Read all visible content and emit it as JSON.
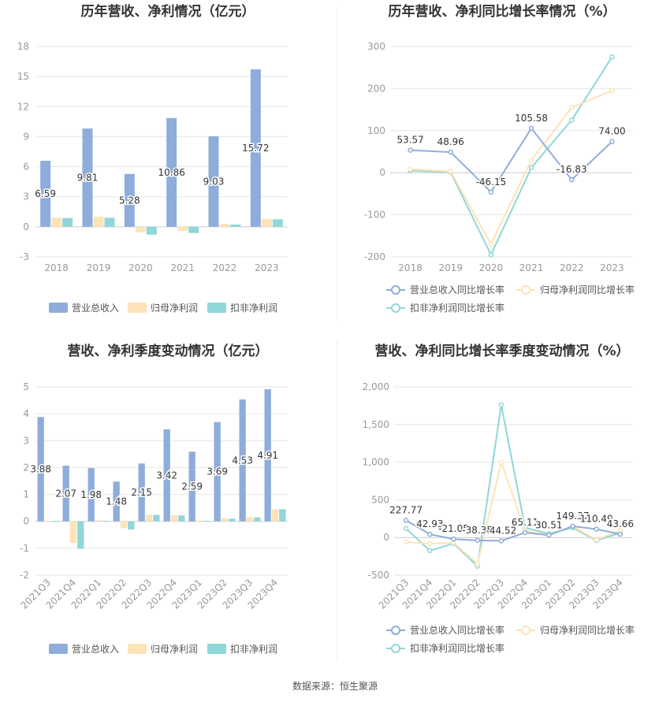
{
  "colors": {
    "revenue": "#8fadda",
    "net_profit": "#fde3b8",
    "deducted_profit": "#8fd7d8",
    "revenue_line": "#8fadda",
    "net_profit_line": "#fde3b8",
    "deducted_profit_line": "#8fd7d8",
    "grid": "#e6e6e6",
    "axis_text": "#999999",
    "title": "#333333"
  },
  "source": "数据来源：恒生聚源",
  "chart_data": [
    {
      "type": "bar",
      "title": "历年营收、净利情况（亿元）",
      "categories": [
        "2018",
        "2019",
        "2020",
        "2021",
        "2022",
        "2023"
      ],
      "ylim": [
        -3,
        18
      ],
      "yticks": [
        -3,
        0,
        3,
        6,
        9,
        12,
        15,
        18
      ],
      "series": [
        {
          "name": "营业总收入",
          "values": [
            6.59,
            9.81,
            5.28,
            10.86,
            9.03,
            15.72
          ],
          "labels": [
            "6.59",
            "9.81",
            "5.28",
            "10.86",
            "9.03",
            "15.72"
          ]
        },
        {
          "name": "归母净利润",
          "values": [
            0.92,
            1.0,
            -0.55,
            -0.4,
            0.28,
            0.78
          ]
        },
        {
          "name": "扣非净利润",
          "values": [
            0.88,
            0.9,
            -0.78,
            -0.62,
            0.22,
            0.75
          ]
        }
      ],
      "legend": "bottom"
    },
    {
      "type": "line",
      "title": "历年营收、净利同比增长率情况（%）",
      "categories": [
        "2018",
        "2019",
        "2020",
        "2021",
        "2022",
        "2023"
      ],
      "ylim": [
        -200,
        300
      ],
      "yticks": [
        -200,
        -100,
        0,
        100,
        200,
        300
      ],
      "series": [
        {
          "name": "营业总收入同比增长率",
          "values": [
            53.57,
            48.96,
            -46.15,
            105.58,
            -16.83,
            74.0
          ],
          "labels": [
            "53.57",
            "48.96",
            "-46.15",
            "105.58",
            "-16.83",
            "74.00"
          ]
        },
        {
          "name": "归母净利润同比增长率",
          "values": [
            8,
            3,
            -170,
            30,
            155,
            195
          ]
        },
        {
          "name": "扣非净利润同比增长率",
          "values": [
            5,
            1,
            -195,
            12,
            125,
            275
          ]
        }
      ],
      "legend": "bottom"
    },
    {
      "type": "bar",
      "title": "营收、净利季度变动情况（亿元）",
      "categories": [
        "2021Q3",
        "2021Q4",
        "2022Q1",
        "2022Q2",
        "2022Q3",
        "2022Q4",
        "2023Q1",
        "2023Q2",
        "2023Q3",
        "2023Q4"
      ],
      "ylim": [
        -2,
        5
      ],
      "yticks": [
        -2,
        -1,
        0,
        1,
        2,
        3,
        4,
        5
      ],
      "series": [
        {
          "name": "营业总收入",
          "values": [
            3.88,
            2.07,
            1.98,
            1.48,
            2.15,
            3.42,
            2.59,
            3.69,
            4.53,
            4.91
          ],
          "labels": [
            "3.88",
            "2.07",
            "1.98",
            "1.48",
            "2.15",
            "3.42",
            "2.59",
            "3.69",
            "4.53",
            "4.91"
          ]
        },
        {
          "name": "归母净利润",
          "values": [
            0.02,
            -0.8,
            0.04,
            -0.25,
            0.25,
            0.22,
            0.03,
            0.12,
            0.16,
            0.45
          ]
        },
        {
          "name": "扣非净利润",
          "values": [
            0.01,
            -1.02,
            0.02,
            -0.3,
            0.24,
            0.22,
            0.02,
            0.1,
            0.15,
            0.45
          ]
        }
      ],
      "legend": "bottom"
    },
    {
      "type": "line",
      "title": "营收、净利同比增长率季度变动情况（%）",
      "categories": [
        "2021Q3",
        "2021Q4",
        "2022Q1",
        "2022Q2",
        "2022Q3",
        "2022Q4",
        "2023Q1",
        "2023Q2",
        "2023Q3",
        "2023Q4"
      ],
      "ylim": [
        -500,
        2000
      ],
      "yticks": [
        -500,
        0,
        500,
        1000,
        1500,
        2000
      ],
      "yticklabels": [
        "-500",
        "0",
        "500",
        "1,000",
        "1,500",
        "2,000"
      ],
      "series": [
        {
          "name": "营业总收入同比增长率",
          "values": [
            227.77,
            42.93,
            -21.05,
            -38.35,
            -44.52,
            65.11,
            30.51,
            149.37,
            110.49,
            43.66
          ],
          "labels": [
            "227.77",
            "42.93",
            "-21.05",
            "-38.35",
            "-44.52",
            "65.11",
            "30.51",
            "149.37",
            "110.49",
            "43.66"
          ]
        },
        {
          "name": "归母净利润同比增长率",
          "values": [
            -60,
            -80,
            -70,
            -350,
            1000,
            90,
            30,
            150,
            -30,
            90
          ]
        },
        {
          "name": "扣非净利润同比增长率",
          "values": [
            120,
            -175,
            -80,
            -380,
            1760,
            130,
            50,
            130,
            -40,
            60
          ]
        }
      ],
      "legend": "bottom"
    }
  ]
}
